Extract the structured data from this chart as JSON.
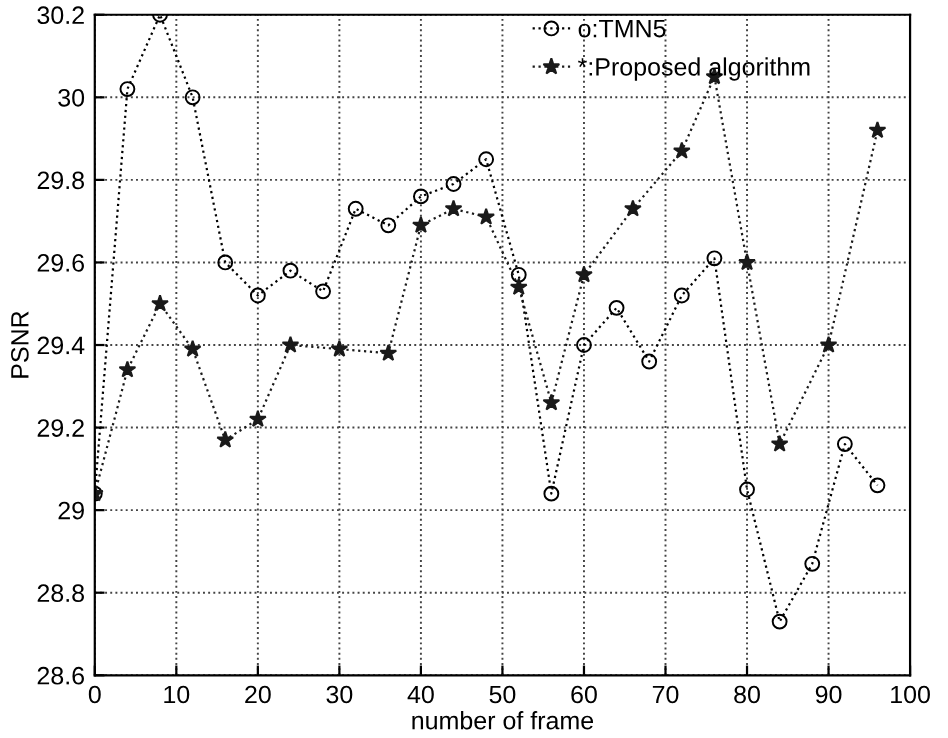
{
  "chart_data": {
    "type": "line",
    "xlabel": "number of frame",
    "ylabel": "PSNR",
    "xlim": [
      0,
      100
    ],
    "xticks": [
      0,
      10,
      20,
      30,
      40,
      50,
      60,
      70,
      80,
      90,
      100
    ],
    "ylim": [
      28.6,
      30.2
    ],
    "yticks": [
      {
        "value": 28.6,
        "label": "28.6"
      },
      {
        "value": 28.8,
        "label": "28.8"
      },
      {
        "value": 29,
        "label": "29"
      },
      {
        "value": 29.2,
        "label": "29.2"
      },
      {
        "value": 29.4,
        "label": "29.4"
      },
      {
        "value": 29.6,
        "label": "29.6"
      },
      {
        "value": 29.8,
        "label": "29.8"
      },
      {
        "value": 30,
        "label": "30"
      },
      {
        "value": 30.2,
        "label": "30.2"
      }
    ],
    "grid": true,
    "legend": "top right",
    "line_style": "dotted",
    "series": [
      {
        "name": "o:TMN5",
        "color": "#000000",
        "marker": "circle",
        "x": [
          0,
          4,
          8,
          12,
          16,
          20,
          24,
          28,
          32,
          36,
          40,
          44,
          48,
          52,
          56,
          60,
          64,
          68,
          72,
          76,
          80,
          84,
          88,
          92,
          96
        ],
        "values": [
          29.04,
          30.02,
          30.2,
          30.0,
          29.6,
          29.52,
          29.58,
          29.53,
          29.73,
          29.69,
          29.76,
          29.79,
          29.85,
          29.57,
          29.04,
          29.4,
          29.49,
          29.36,
          29.52,
          29.61,
          29.05,
          28.73,
          28.87,
          29.16,
          29.06
        ]
      },
      {
        "name": "*:Proposed algorithm",
        "color": "#1a1a1a",
        "marker": "star",
        "x": [
          0,
          4,
          8,
          12,
          16,
          20,
          24,
          30,
          36,
          40,
          44,
          48,
          52,
          56,
          60,
          66,
          72,
          76,
          80,
          84,
          90,
          96
        ],
        "values": [
          29.04,
          29.34,
          29.5,
          29.39,
          29.17,
          29.22,
          29.4,
          29.39,
          29.38,
          29.69,
          29.73,
          29.71,
          29.54,
          29.26,
          29.57,
          29.73,
          29.87,
          30.05,
          29.6,
          29.16,
          29.4,
          29.92
        ]
      }
    ]
  }
}
